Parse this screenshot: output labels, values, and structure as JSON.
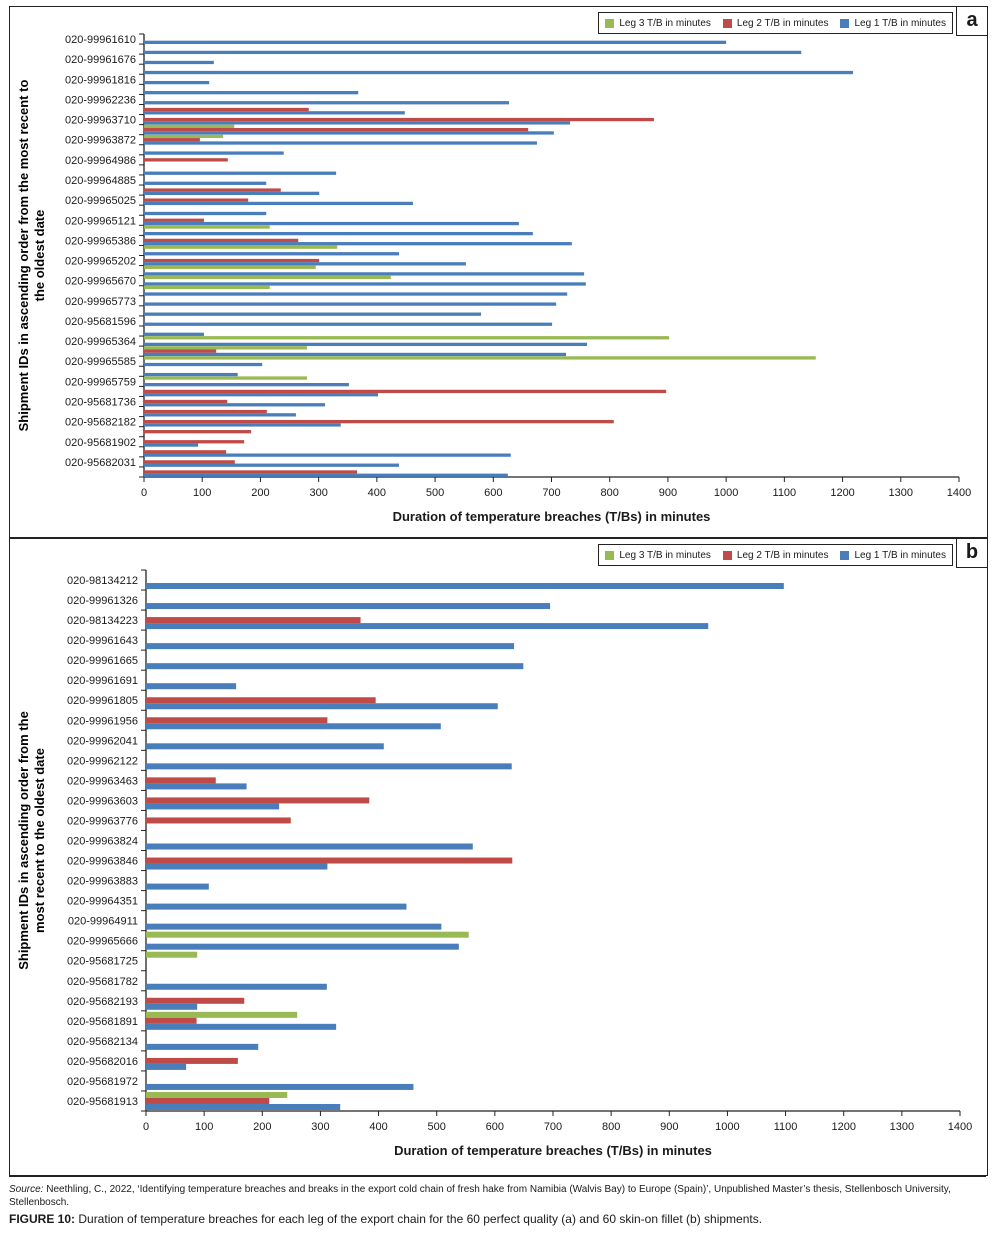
{
  "colors": {
    "leg1": "#4a7ebb",
    "leg2": "#be4b48",
    "leg3": "#98b954"
  },
  "legend": [
    {
      "key": "leg3",
      "label": "Leg 3 T/B in minutes"
    },
    {
      "key": "leg2",
      "label": "Leg 2 T/B in minutes"
    },
    {
      "key": "leg1",
      "label": "Leg 1 T/B in minutes"
    }
  ],
  "chart_data": [
    {
      "type": "bar",
      "orientation": "horizontal",
      "panel": "a",
      "xlabel": "Duration of temperature breaches (T/Bs) in minutes",
      "ylabel": "Shipment IDs in ascending order from the most recent to the oldest date",
      "xlim": [
        0,
        1400
      ],
      "xticks": [
        0,
        100,
        200,
        300,
        400,
        500,
        600,
        700,
        800,
        900,
        1000,
        1100,
        1200,
        1300,
        1400
      ],
      "legend_position": "top-right",
      "category_labels_every": 2,
      "category_labels": [
        "020-99961610",
        "020-99961676",
        "020-99961816",
        "020-99962236",
        "020-99963710",
        "020-99963872",
        "020-99964986",
        "020-99964885",
        "020-99965025",
        "020-99965121",
        "020-99965386",
        "020-99965202",
        "020-99965670",
        "020-99965773",
        "020-95681596",
        "020-99965364",
        "020-99965585",
        "020-99965759",
        "020-95681736",
        "020-95682182",
        "020-95681902",
        "020-95682031"
      ],
      "series": [
        {
          "name": "Leg 3 T/B in minutes",
          "key": "leg3",
          "values": [
            0,
            0,
            0,
            0,
            0,
            0,
            0,
            0,
            0,
            155,
            136,
            0,
            0,
            0,
            0,
            0,
            0,
            0,
            0,
            216,
            0,
            332,
            0,
            295,
            424,
            216,
            0,
            0,
            0,
            0,
            902,
            280,
            1154,
            0,
            280,
            0,
            0,
            0,
            0,
            0,
            0,
            0,
            0,
            0
          ]
        },
        {
          "name": "Leg 2 T/B in minutes",
          "key": "leg2",
          "values": [
            0,
            0,
            0,
            0,
            0,
            0,
            0,
            283,
            876,
            660,
            96,
            0,
            144,
            0,
            0,
            235,
            179,
            0,
            103,
            0,
            265,
            0,
            301,
            0,
            0,
            0,
            0,
            0,
            0,
            0,
            0,
            124,
            0,
            0,
            0,
            897,
            143,
            211,
            807,
            184,
            172,
            141,
            156,
            366
          ]
        },
        {
          "name": "Leg 1 T/B in minutes",
          "key": "leg1",
          "values": [
            1000,
            1129,
            120,
            1218,
            112,
            368,
            627,
            448,
            732,
            704,
            675,
            240,
            0,
            330,
            210,
            301,
            462,
            210,
            644,
            668,
            735,
            438,
            553,
            756,
            759,
            727,
            708,
            579,
            701,
            103,
            761,
            725,
            203,
            161,
            352,
            402,
            311,
            261,
            338,
            0,
            93,
            630,
            438,
            625
          ]
        }
      ]
    },
    {
      "type": "bar",
      "orientation": "horizontal",
      "panel": "b",
      "xlabel": "Duration of temperature breaches (T/Bs) in minutes",
      "ylabel": "Shipment IDs in ascending order from the most recent to the oldest date",
      "xlim": [
        0,
        1400
      ],
      "xticks": [
        0,
        100,
        200,
        300,
        400,
        500,
        600,
        700,
        800,
        900,
        1000,
        1100,
        1200,
        1300,
        1400
      ],
      "legend_position": "top-right",
      "category_labels_every": 1,
      "category_labels": [
        "020-98134212",
        "020-99961326",
        "020-98134223",
        "020-99961643",
        "020-99961665",
        "020-99961691",
        "020-99961805",
        "020-99961956",
        "020-99962041",
        "020-99962122",
        "020-99963463",
        "020-99963603",
        "020-99963776",
        "020-99963824",
        "020-99963846",
        "020-99963883",
        "020-99964351",
        "020-99964911",
        "020-99965666",
        "020-95681725",
        "020-95681782",
        "020-95682193",
        "020-95681891",
        "020-95682134",
        "020-95682016",
        "020-95681972",
        "020-95681913"
      ],
      "series": [
        {
          "name": "Leg 3 T/B in minutes",
          "key": "leg3",
          "values": [
            0,
            0,
            0,
            0,
            0,
            0,
            0,
            0,
            0,
            0,
            0,
            0,
            0,
            0,
            0,
            0,
            0,
            0,
            555,
            88,
            0,
            0,
            260,
            0,
            0,
            0,
            243
          ]
        },
        {
          "name": "Leg 2 T/B in minutes",
          "key": "leg2",
          "values": [
            0,
            0,
            369,
            0,
            0,
            0,
            395,
            312,
            0,
            0,
            120,
            384,
            249,
            0,
            630,
            0,
            0,
            0,
            0,
            0,
            0,
            169,
            87,
            0,
            158,
            0,
            212
          ]
        },
        {
          "name": "Leg 1 T/B in minutes",
          "key": "leg1",
          "values": [
            1097,
            695,
            967,
            633,
            649,
            155,
            605,
            507,
            409,
            629,
            173,
            229,
            0,
            562,
            312,
            108,
            448,
            508,
            538,
            0,
            311,
            88,
            327,
            193,
            69,
            460,
            334
          ]
        }
      ]
    }
  ],
  "panels": {
    "a": {
      "letter": "a"
    },
    "b": {
      "letter": "b"
    }
  },
  "source_label": "Source:",
  "source_text": " Neethling, C., 2022, ‘Identifying temperature breaches and breaks in the export cold chain of fresh hake from Namibia (Walvis Bay) to Europe (Spain)’, Unpublished Master’s thesis, Stellenbosch University, Stellenbosch.",
  "figure_label": "FIGURE 10:",
  "figure_caption": " Duration of temperature breaches for each leg of the export chain for the 60 perfect quality (a) and 60 skin-on fillet (b) shipments."
}
